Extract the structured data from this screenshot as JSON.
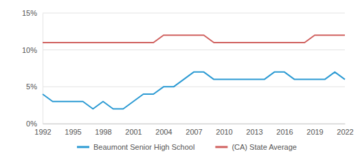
{
  "chart_data": {
    "type": "line",
    "x": [
      1992,
      1993,
      1994,
      1995,
      1996,
      1997,
      1998,
      1999,
      2000,
      2001,
      2002,
      2003,
      2004,
      2005,
      2006,
      2007,
      2008,
      2009,
      2010,
      2011,
      2012,
      2013,
      2014,
      2015,
      2016,
      2017,
      2018,
      2019,
      2020,
      2021,
      2022
    ],
    "series": [
      {
        "name": "Beaumont Senior High School",
        "color": "#2b9ad3",
        "values": [
          4,
          3,
          3,
          3,
          3,
          2,
          3,
          2,
          2,
          3,
          4,
          4,
          5,
          5,
          6,
          7,
          7,
          6,
          6,
          6,
          6,
          6,
          6,
          7,
          7,
          6,
          6,
          6,
          6,
          7,
          6
        ]
      },
      {
        "name": "(CA) State Average",
        "color": "#d0605e",
        "values": [
          11,
          11,
          11,
          11,
          11,
          11,
          11,
          11,
          11,
          11,
          11,
          11,
          12,
          12,
          12,
          12,
          12,
          11,
          11,
          11,
          11,
          11,
          11,
          11,
          11,
          11,
          11,
          12,
          12,
          12,
          12
        ]
      }
    ],
    "xlim": [
      1992,
      2022
    ],
    "xticks": [
      1992,
      1995,
      1998,
      2001,
      2004,
      2007,
      2010,
      2013,
      2016,
      2019,
      2022
    ],
    "ylim": [
      0,
      15
    ],
    "yticks": [
      {
        "value": 0,
        "label": "0%"
      },
      {
        "value": 5,
        "label": "5%"
      },
      {
        "value": 10,
        "label": "10%"
      },
      {
        "value": 15,
        "label": "15%"
      }
    ],
    "grid": true,
    "legend": "bottom"
  }
}
